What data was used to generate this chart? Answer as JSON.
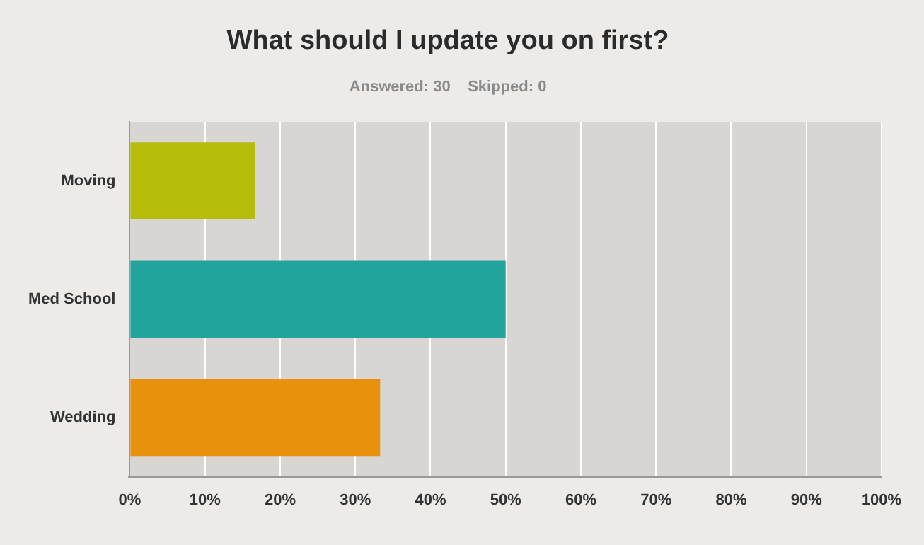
{
  "chart_data": {
    "type": "bar",
    "orientation": "horizontal",
    "title": "What should I update you on first?",
    "subtitle": "Answered: 30    Skipped: 0",
    "categories": [
      "Moving",
      "Med School",
      "Wedding"
    ],
    "values": [
      16.7,
      50,
      33.3
    ],
    "colors": [
      "#b5bd0a",
      "#22a39b",
      "#e8910c"
    ],
    "xlim": [
      0,
      100
    ],
    "xticks": [
      {
        "value": 0,
        "label": "0%"
      },
      {
        "value": 10,
        "label": "10%"
      },
      {
        "value": 20,
        "label": "20%"
      },
      {
        "value": 30,
        "label": "30%"
      },
      {
        "value": 40,
        "label": "40%"
      },
      {
        "value": 50,
        "label": "50%"
      },
      {
        "value": 60,
        "label": "60%"
      },
      {
        "value": 70,
        "label": "70%"
      },
      {
        "value": 80,
        "label": "80%"
      },
      {
        "value": 90,
        "label": "90%"
      },
      {
        "value": 100,
        "label": "100%"
      }
    ],
    "grid": "x",
    "legend": false
  }
}
